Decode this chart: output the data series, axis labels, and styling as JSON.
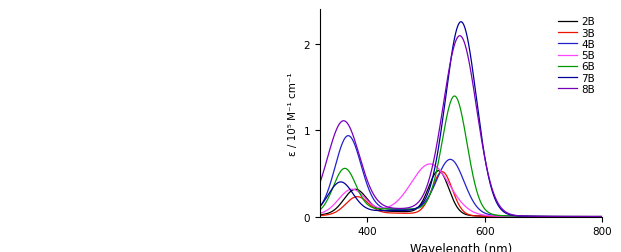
{
  "xlabel": "Wavelength (nm)",
  "ylabel": "ε / 10⁵ M⁻¹ cm⁻¹",
  "xlim": [
    320,
    800
  ],
  "ylim": [
    0,
    2.4
  ],
  "yticks": [
    0,
    1,
    2
  ],
  "xticks": [
    400,
    600,
    800
  ],
  "legend_fontsize": 7.5,
  "axis_fontsize": 7.5,
  "label_fontsize": 8.5,
  "series": [
    {
      "label": "2B",
      "color": "#000000",
      "p1x": 380,
      "p1y": 0.27,
      "p1w": 19,
      "p2x": 522,
      "p2y": 0.5,
      "p2w": 17,
      "base": 0.06,
      "basew": 75,
      "basec": 435
    },
    {
      "label": "3B",
      "color": "#ee1100",
      "p1x": 383,
      "p1y": 0.2,
      "p1w": 19,
      "p2x": 528,
      "p2y": 0.5,
      "p2w": 17,
      "base": 0.04,
      "basew": 75,
      "basec": 438
    },
    {
      "label": "4B",
      "color": "#2222cc",
      "p1x": 368,
      "p1y": 0.88,
      "p1w": 22,
      "p2x": 542,
      "p2y": 0.62,
      "p2w": 23,
      "base": 0.08,
      "basew": 88,
      "basec": 442
    },
    {
      "label": "5B",
      "color": "#ff44ff",
      "p1x": 374,
      "p1y": 0.27,
      "p1w": 22,
      "p2x": 508,
      "p2y": 0.57,
      "p2w": 32,
      "base": 0.06,
      "basew": 82,
      "basec": 432
    },
    {
      "label": "6B",
      "color": "#009900",
      "p1x": 362,
      "p1y": 0.5,
      "p1w": 19,
      "p2x": 549,
      "p2y": 1.35,
      "p2w": 21,
      "base": 0.09,
      "basew": 88,
      "basec": 445
    },
    {
      "label": "7B",
      "color": "#000099",
      "p1x": 355,
      "p1y": 0.36,
      "p1w": 21,
      "p2x": 560,
      "p2y": 2.22,
      "p2w": 26,
      "base": 0.07,
      "basew": 92,
      "basec": 450
    },
    {
      "label": "8B",
      "color": "#7700bb",
      "p1x": 360,
      "p1y": 1.05,
      "p1w": 27,
      "p2x": 558,
      "p2y": 2.05,
      "p2w": 28,
      "base": 0.09,
      "basew": 92,
      "basec": 445
    }
  ]
}
